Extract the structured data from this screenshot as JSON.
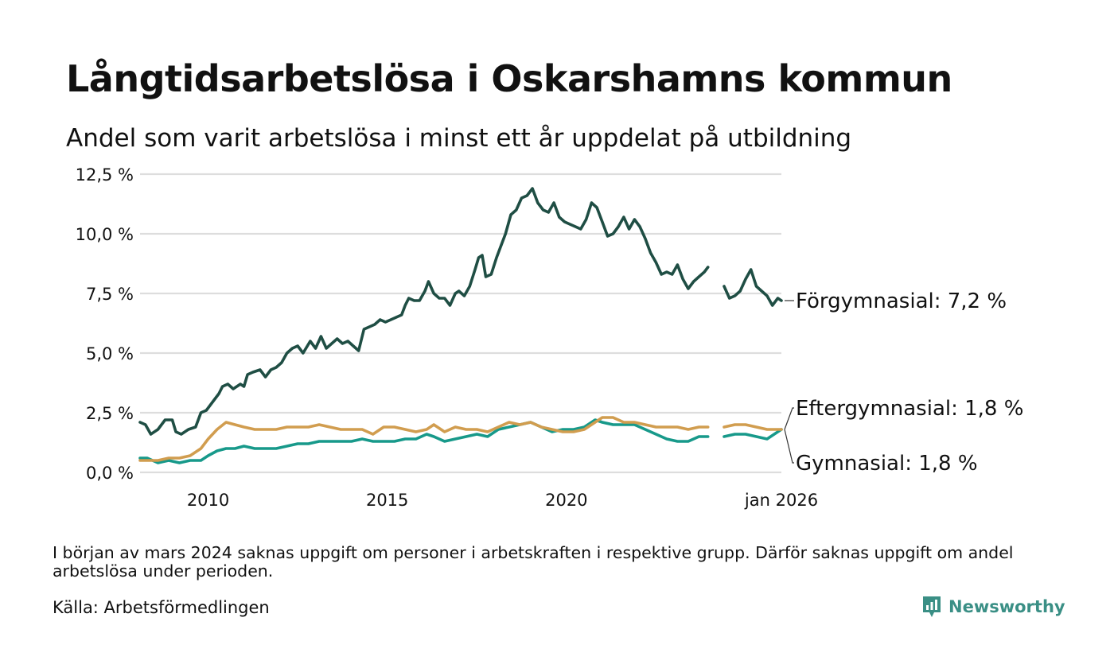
{
  "title": "Långtidsarbetslösa i Oskarshamns kommun",
  "subtitle": "Andel som varit arbetslösa i minst ett år uppdelat på utbildning",
  "footnote": "I början av mars 2024 saknas uppgift om personer i arbetskraften i respektive grupp. Därför saknas uppgift om andel arbetslösa under perioden.",
  "source": "Källa: Arbetsförmedlingen",
  "brand": {
    "name": "Newsworthy",
    "icon": "newsworthy-logo-icon"
  },
  "colors": {
    "forgymnasial": "#1f4e44",
    "eftergymnasial": "#d19d4f",
    "gymnasial": "#17998a",
    "grid": "#dddddd",
    "brand": "#3a8f85"
  },
  "chart_data": {
    "type": "line",
    "x_unit": "decimal year",
    "xlim": [
      2008.1,
      2026.0
    ],
    "ylim": [
      0,
      12.5
    ],
    "y_ticks": [
      0,
      2.5,
      5.0,
      7.5,
      10.0,
      12.5
    ],
    "y_tick_labels": [
      "0,0 %",
      "2,5 %",
      "5,0 %",
      "7,5 %",
      "10,0 %",
      "12,5 %"
    ],
    "x_ticks": [
      2010,
      2015,
      2020,
      2026.0
    ],
    "x_tick_labels": [
      "2010",
      "2015",
      "2020",
      "jan 2026"
    ],
    "grid": "horizontal",
    "gap": [
      2024.0,
      2024.4
    ],
    "series": [
      {
        "name": "Förgymnasial",
        "end_label": "Förgymnasial: 7,2 %",
        "color": "#1f4e44",
        "points": [
          [
            2008.1,
            2.1
          ],
          [
            2008.25,
            2.0
          ],
          [
            2008.4,
            1.6
          ],
          [
            2008.6,
            1.8
          ],
          [
            2008.8,
            2.2
          ],
          [
            2009.0,
            2.2
          ],
          [
            2009.1,
            1.7
          ],
          [
            2009.25,
            1.6
          ],
          [
            2009.45,
            1.8
          ],
          [
            2009.65,
            1.9
          ],
          [
            2009.8,
            2.5
          ],
          [
            2009.95,
            2.6
          ],
          [
            2010.15,
            3.0
          ],
          [
            2010.3,
            3.3
          ],
          [
            2010.4,
            3.6
          ],
          [
            2010.55,
            3.7
          ],
          [
            2010.7,
            3.5
          ],
          [
            2010.9,
            3.7
          ],
          [
            2011.0,
            3.6
          ],
          [
            2011.1,
            4.1
          ],
          [
            2011.25,
            4.2
          ],
          [
            2011.45,
            4.3
          ],
          [
            2011.6,
            4.0
          ],
          [
            2011.75,
            4.3
          ],
          [
            2011.9,
            4.4
          ],
          [
            2012.05,
            4.6
          ],
          [
            2012.2,
            5.0
          ],
          [
            2012.35,
            5.2
          ],
          [
            2012.5,
            5.3
          ],
          [
            2012.65,
            5.0
          ],
          [
            2012.85,
            5.5
          ],
          [
            2013.0,
            5.2
          ],
          [
            2013.15,
            5.7
          ],
          [
            2013.3,
            5.2
          ],
          [
            2013.45,
            5.4
          ],
          [
            2013.6,
            5.6
          ],
          [
            2013.75,
            5.4
          ],
          [
            2013.9,
            5.5
          ],
          [
            2014.05,
            5.3
          ],
          [
            2014.2,
            5.1
          ],
          [
            2014.35,
            6.0
          ],
          [
            2014.5,
            6.1
          ],
          [
            2014.65,
            6.2
          ],
          [
            2014.8,
            6.4
          ],
          [
            2014.95,
            6.3
          ],
          [
            2015.1,
            6.4
          ],
          [
            2015.25,
            6.5
          ],
          [
            2015.4,
            6.6
          ],
          [
            2015.5,
            7.0
          ],
          [
            2015.6,
            7.3
          ],
          [
            2015.75,
            7.2
          ],
          [
            2015.9,
            7.2
          ],
          [
            2016.05,
            7.6
          ],
          [
            2016.15,
            8.0
          ],
          [
            2016.3,
            7.5
          ],
          [
            2016.45,
            7.3
          ],
          [
            2016.6,
            7.3
          ],
          [
            2016.75,
            7.0
          ],
          [
            2016.9,
            7.5
          ],
          [
            2017.0,
            7.6
          ],
          [
            2017.15,
            7.4
          ],
          [
            2017.3,
            7.8
          ],
          [
            2017.45,
            8.5
          ],
          [
            2017.55,
            9.0
          ],
          [
            2017.65,
            9.1
          ],
          [
            2017.75,
            8.2
          ],
          [
            2017.9,
            8.3
          ],
          [
            2018.05,
            9.0
          ],
          [
            2018.15,
            9.4
          ],
          [
            2018.3,
            10.0
          ],
          [
            2018.45,
            10.8
          ],
          [
            2018.6,
            11.0
          ],
          [
            2018.75,
            11.5
          ],
          [
            2018.9,
            11.6
          ],
          [
            2019.05,
            11.9
          ],
          [
            2019.2,
            11.3
          ],
          [
            2019.35,
            11.0
          ],
          [
            2019.5,
            10.9
          ],
          [
            2019.65,
            11.3
          ],
          [
            2019.8,
            10.7
          ],
          [
            2019.95,
            10.5
          ],
          [
            2020.1,
            10.4
          ],
          [
            2020.25,
            10.3
          ],
          [
            2020.4,
            10.2
          ],
          [
            2020.55,
            10.6
          ],
          [
            2020.7,
            11.3
          ],
          [
            2020.85,
            11.1
          ],
          [
            2021.0,
            10.5
          ],
          [
            2021.15,
            9.9
          ],
          [
            2021.3,
            10.0
          ],
          [
            2021.45,
            10.3
          ],
          [
            2021.6,
            10.7
          ],
          [
            2021.75,
            10.2
          ],
          [
            2021.9,
            10.6
          ],
          [
            2022.05,
            10.3
          ],
          [
            2022.2,
            9.8
          ],
          [
            2022.35,
            9.2
          ],
          [
            2022.5,
            8.8
          ],
          [
            2022.65,
            8.3
          ],
          [
            2022.8,
            8.4
          ],
          [
            2022.95,
            8.3
          ],
          [
            2023.1,
            8.7
          ],
          [
            2023.25,
            8.1
          ],
          [
            2023.4,
            7.7
          ],
          [
            2023.55,
            8.0
          ],
          [
            2023.7,
            8.2
          ],
          [
            2023.85,
            8.4
          ],
          [
            2023.95,
            8.6
          ],
          [
            2024.4,
            7.8
          ],
          [
            2024.55,
            7.3
          ],
          [
            2024.7,
            7.4
          ],
          [
            2024.85,
            7.6
          ],
          [
            2025.0,
            8.1
          ],
          [
            2025.15,
            8.5
          ],
          [
            2025.3,
            7.8
          ],
          [
            2025.45,
            7.6
          ],
          [
            2025.6,
            7.4
          ],
          [
            2025.75,
            7.0
          ],
          [
            2025.9,
            7.3
          ],
          [
            2026.0,
            7.2
          ]
        ]
      },
      {
        "name": "Eftergymnasial",
        "end_label": "Eftergymnasial: 1,8 %",
        "color": "#d19d4f",
        "points": [
          [
            2008.1,
            0.5
          ],
          [
            2008.3,
            0.5
          ],
          [
            2008.6,
            0.5
          ],
          [
            2008.9,
            0.6
          ],
          [
            2009.2,
            0.6
          ],
          [
            2009.5,
            0.7
          ],
          [
            2009.8,
            1.0
          ],
          [
            2010.0,
            1.4
          ],
          [
            2010.25,
            1.8
          ],
          [
            2010.5,
            2.1
          ],
          [
            2010.75,
            2.0
          ],
          [
            2011.0,
            1.9
          ],
          [
            2011.3,
            1.8
          ],
          [
            2011.6,
            1.8
          ],
          [
            2011.9,
            1.8
          ],
          [
            2012.2,
            1.9
          ],
          [
            2012.5,
            1.9
          ],
          [
            2012.8,
            1.9
          ],
          [
            2013.1,
            2.0
          ],
          [
            2013.4,
            1.9
          ],
          [
            2013.7,
            1.8
          ],
          [
            2014.0,
            1.8
          ],
          [
            2014.3,
            1.8
          ],
          [
            2014.6,
            1.6
          ],
          [
            2014.9,
            1.9
          ],
          [
            2015.2,
            1.9
          ],
          [
            2015.5,
            1.8
          ],
          [
            2015.8,
            1.7
          ],
          [
            2016.1,
            1.8
          ],
          [
            2016.3,
            2.0
          ],
          [
            2016.6,
            1.7
          ],
          [
            2016.9,
            1.9
          ],
          [
            2017.2,
            1.8
          ],
          [
            2017.5,
            1.8
          ],
          [
            2017.8,
            1.7
          ],
          [
            2018.1,
            1.9
          ],
          [
            2018.4,
            2.1
          ],
          [
            2018.7,
            2.0
          ],
          [
            2019.0,
            2.1
          ],
          [
            2019.3,
            1.9
          ],
          [
            2019.6,
            1.8
          ],
          [
            2019.9,
            1.7
          ],
          [
            2020.2,
            1.7
          ],
          [
            2020.5,
            1.8
          ],
          [
            2020.8,
            2.1
          ],
          [
            2021.0,
            2.3
          ],
          [
            2021.3,
            2.3
          ],
          [
            2021.6,
            2.1
          ],
          [
            2021.9,
            2.1
          ],
          [
            2022.2,
            2.0
          ],
          [
            2022.5,
            1.9
          ],
          [
            2022.8,
            1.9
          ],
          [
            2023.1,
            1.9
          ],
          [
            2023.4,
            1.8
          ],
          [
            2023.7,
            1.9
          ],
          [
            2023.95,
            1.9
          ],
          [
            2024.4,
            1.9
          ],
          [
            2024.7,
            2.0
          ],
          [
            2025.0,
            2.0
          ],
          [
            2025.3,
            1.9
          ],
          [
            2025.6,
            1.8
          ],
          [
            2025.8,
            1.8
          ],
          [
            2026.0,
            1.8
          ]
        ]
      },
      {
        "name": "Gymnasial",
        "end_label": "Gymnasial: 1,8 %",
        "color": "#17998a",
        "points": [
          [
            2008.1,
            0.6
          ],
          [
            2008.3,
            0.6
          ],
          [
            2008.6,
            0.4
          ],
          [
            2008.9,
            0.5
          ],
          [
            2009.2,
            0.4
          ],
          [
            2009.5,
            0.5
          ],
          [
            2009.8,
            0.5
          ],
          [
            2010.0,
            0.7
          ],
          [
            2010.25,
            0.9
          ],
          [
            2010.5,
            1.0
          ],
          [
            2010.75,
            1.0
          ],
          [
            2011.0,
            1.1
          ],
          [
            2011.3,
            1.0
          ],
          [
            2011.6,
            1.0
          ],
          [
            2011.9,
            1.0
          ],
          [
            2012.2,
            1.1
          ],
          [
            2012.5,
            1.2
          ],
          [
            2012.8,
            1.2
          ],
          [
            2013.1,
            1.3
          ],
          [
            2013.4,
            1.3
          ],
          [
            2013.7,
            1.3
          ],
          [
            2014.0,
            1.3
          ],
          [
            2014.3,
            1.4
          ],
          [
            2014.6,
            1.3
          ],
          [
            2014.9,
            1.3
          ],
          [
            2015.2,
            1.3
          ],
          [
            2015.5,
            1.4
          ],
          [
            2015.8,
            1.4
          ],
          [
            2016.1,
            1.6
          ],
          [
            2016.3,
            1.5
          ],
          [
            2016.6,
            1.3
          ],
          [
            2016.9,
            1.4
          ],
          [
            2017.2,
            1.5
          ],
          [
            2017.5,
            1.6
          ],
          [
            2017.8,
            1.5
          ],
          [
            2018.1,
            1.8
          ],
          [
            2018.4,
            1.9
          ],
          [
            2018.7,
            2.0
          ],
          [
            2019.0,
            2.1
          ],
          [
            2019.3,
            1.9
          ],
          [
            2019.6,
            1.7
          ],
          [
            2019.9,
            1.8
          ],
          [
            2020.2,
            1.8
          ],
          [
            2020.5,
            1.9
          ],
          [
            2020.8,
            2.2
          ],
          [
            2021.0,
            2.1
          ],
          [
            2021.3,
            2.0
          ],
          [
            2021.6,
            2.0
          ],
          [
            2021.9,
            2.0
          ],
          [
            2022.2,
            1.8
          ],
          [
            2022.5,
            1.6
          ],
          [
            2022.8,
            1.4
          ],
          [
            2023.1,
            1.3
          ],
          [
            2023.4,
            1.3
          ],
          [
            2023.7,
            1.5
          ],
          [
            2023.95,
            1.5
          ],
          [
            2024.4,
            1.5
          ],
          [
            2024.7,
            1.6
          ],
          [
            2025.0,
            1.6
          ],
          [
            2025.3,
            1.5
          ],
          [
            2025.6,
            1.4
          ],
          [
            2025.8,
            1.6
          ],
          [
            2026.0,
            1.8
          ]
        ]
      }
    ]
  }
}
